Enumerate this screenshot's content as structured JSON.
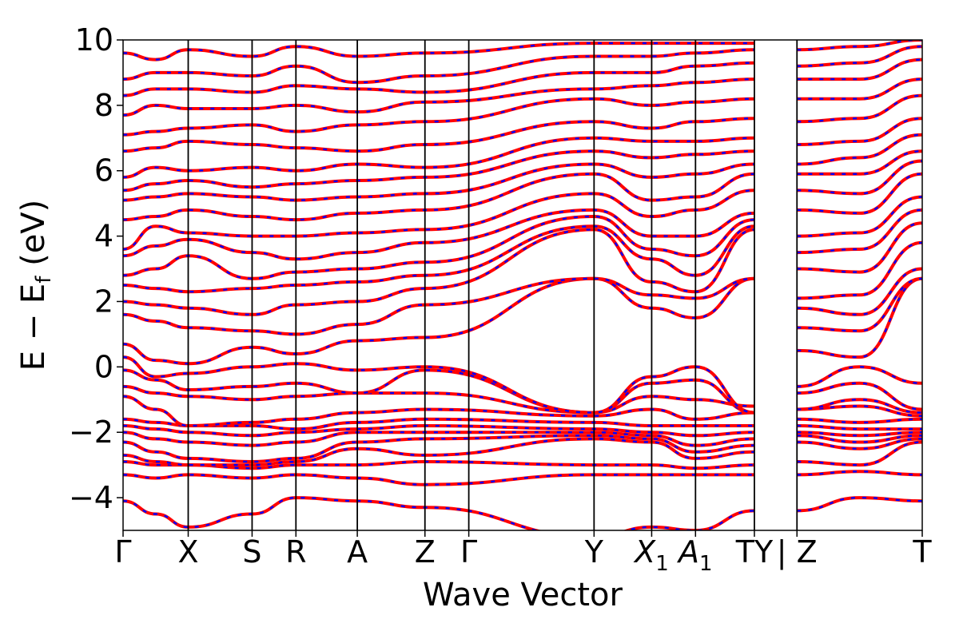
{
  "chart_data": {
    "type": "line",
    "title": "",
    "xlabel": "Wave Vector",
    "ylabel": "E − E",
    "ylabel_sub": "f",
    "ylabel_unit": " (eV)",
    "ylim": [
      -5,
      10
    ],
    "yticks": [
      -4,
      -2,
      0,
      2,
      4,
      6,
      8,
      10
    ],
    "ytick_labels": [
      "−4",
      "−2",
      "0",
      "2",
      "4",
      "6",
      "8",
      "10"
    ],
    "x_path_positions": [
      0,
      0.52,
      1.03,
      1.38,
      1.87,
      2.41,
      2.76,
      3.76,
      4.22,
      4.57,
      5.04,
      5.38,
      6.38
    ],
    "xlim": [
      0,
      6.38
    ],
    "xticks": [
      {
        "pos": 0,
        "label": "Γ"
      },
      {
        "pos": 0.52,
        "label": "X"
      },
      {
        "pos": 1.03,
        "label": "S"
      },
      {
        "pos": 1.38,
        "label": "R"
      },
      {
        "pos": 1.87,
        "label": "A"
      },
      {
        "pos": 2.41,
        "label": "Z"
      },
      {
        "pos": 2.76,
        "label": "Γ"
      },
      {
        "pos": 3.76,
        "label": "Y"
      },
      {
        "pos": 4.22,
        "label": "X",
        "sub": "1",
        "italic": true
      },
      {
        "pos": 4.57,
        "label": "A",
        "sub": "1",
        "italic": true
      },
      {
        "pos": 5.04,
        "label": "TY"
      },
      {
        "pos": 5.38,
        "label": "| Z"
      },
      {
        "pos": 6.38,
        "label": "T"
      }
    ],
    "break_between": [
      5.04,
      5.38
    ],
    "grid": false,
    "legend": "none",
    "colors": {
      "band_solid": "#ff0000",
      "band_dashed": "#0000ff",
      "vline": "#000000"
    },
    "series": [
      {
        "y": [
          -4.1,
          -4.5,
          -4.9,
          -4.5,
          -4.0,
          -4.1,
          -4.3,
          -5.2,
          -4.9,
          -5.0,
          -4.4,
          -4.4,
          -4.0,
          -4.1
        ]
      },
      {
        "y": [
          -3.3,
          -3.4,
          -3.3,
          -3.4,
          -3.3,
          -3.4,
          -3.6,
          -3.3,
          -3.3,
          -3.3,
          -3.3,
          -3.3,
          -3.2,
          -3.3
        ]
      },
      {
        "y": [
          -2.9,
          -3.0,
          -3.0,
          -3.1,
          -3.0,
          -3.0,
          -2.9,
          -3.0,
          -3.0,
          -3.1,
          -3.0,
          -2.9,
          -3.0,
          -2.3
        ]
      },
      {
        "y": [
          -2.7,
          -2.9,
          -3.0,
          -3.0,
          -2.9,
          -2.5,
          -2.7,
          -2.2,
          -2.3,
          -2.8,
          -2.6,
          -2.3,
          -2.5,
          -2.2
        ]
      },
      {
        "y": [
          -2.3,
          -2.6,
          -2.8,
          -2.9,
          -2.8,
          -2.3,
          -2.2,
          -2.1,
          -2.2,
          -2.6,
          -2.4,
          -2.1,
          -2.3,
          -2.1
        ]
      },
      {
        "y": [
          -2.0,
          -2.2,
          -2.3,
          -2.4,
          -2.3,
          -2.0,
          -2.0,
          -2.0,
          -2.1,
          -2.4,
          -2.2,
          -2.0,
          -2.1,
          -2.0
        ]
      },
      {
        "y": [
          -1.8,
          -1.9,
          -2.0,
          -2.1,
          -2.0,
          -1.9,
          -1.8,
          -1.9,
          -2.0,
          -2.1,
          -2.0,
          -1.8,
          -1.9,
          -1.9
        ]
      },
      {
        "y": [
          -1.6,
          -1.7,
          -1.8,
          -1.8,
          -1.9,
          -1.7,
          -1.6,
          -1.7,
          -1.8,
          -1.8,
          -1.8,
          -1.6,
          -1.7,
          -1.6
        ]
      },
      {
        "y": [
          -0.9,
          -1.3,
          -1.8,
          -1.7,
          -1.6,
          -1.4,
          -1.3,
          -1.5,
          -1.3,
          -1.6,
          -1.4,
          -1.3,
          -1.2,
          -1.5
        ]
      },
      {
        "y": [
          -0.6,
          -0.8,
          -0.9,
          -1.0,
          -0.9,
          -0.8,
          -0.8,
          -1.4,
          -0.9,
          -1.0,
          -1.2,
          -1.3,
          -1.0,
          -1.4
        ]
      },
      {
        "y": [
          -0.1,
          -0.4,
          -0.7,
          -0.6,
          -0.5,
          -0.8,
          -0.1,
          -1.4,
          -0.5,
          -0.4,
          -1.4,
          -0.8,
          -0.5,
          -1.3
        ]
      },
      {
        "y": [
          0.3,
          -0.3,
          -0.2,
          0.0,
          0.1,
          -0.1,
          0.0,
          -1.4,
          -0.3,
          0.0,
          -1.4,
          -0.6,
          0.0,
          -0.5
        ]
      },
      {
        "y": [
          0.7,
          0.2,
          0.1,
          0.6,
          0.4,
          0.8,
          0.9,
          2.7,
          1.8,
          1.5,
          2.7,
          0.5,
          0.3,
          2.7
        ]
      },
      {
        "y": [
          1.6,
          1.4,
          1.2,
          1.1,
          1.0,
          1.3,
          1.9,
          2.7,
          2.2,
          2.1,
          2.7,
          1.2,
          1.1,
          2.7
        ]
      },
      {
        "y": [
          2.0,
          1.9,
          1.8,
          1.6,
          1.9,
          2.0,
          2.4,
          4.2,
          2.6,
          2.3,
          4.2,
          1.8,
          1.6,
          3.0
        ]
      },
      {
        "y": [
          2.5,
          2.4,
          2.3,
          2.4,
          2.5,
          2.6,
          2.8,
          4.3,
          3.3,
          2.8,
          4.3,
          2.1,
          2.2,
          3.8
        ]
      },
      {
        "y": [
          2.8,
          3.0,
          3.4,
          2.7,
          2.9,
          3.0,
          3.2,
          4.6,
          3.6,
          3.4,
          4.5,
          3.0,
          2.9,
          4.4
        ]
      },
      {
        "y": [
          3.4,
          3.7,
          3.9,
          3.5,
          3.3,
          3.5,
          3.8,
          4.8,
          4.0,
          4.0,
          4.7,
          3.5,
          3.6,
          4.8
        ]
      },
      {
        "y": [
          3.6,
          4.3,
          4.1,
          4.0,
          4.0,
          4.1,
          4.2,
          5.3,
          4.6,
          4.8,
          5.4,
          4.0,
          4.1,
          5.2
        ]
      },
      {
        "y": [
          4.5,
          4.6,
          4.8,
          4.6,
          4.5,
          4.7,
          4.8,
          5.9,
          5.1,
          5.2,
          5.9,
          4.8,
          4.7,
          5.9
        ]
      },
      {
        "y": [
          5.1,
          5.2,
          5.3,
          5.2,
          5.1,
          5.2,
          5.3,
          6.2,
          5.8,
          5.9,
          6.2,
          5.4,
          5.3,
          6.3
        ]
      },
      {
        "y": [
          5.4,
          5.6,
          5.7,
          5.5,
          5.6,
          5.7,
          5.8,
          6.6,
          6.4,
          6.5,
          6.6,
          5.9,
          5.9,
          6.6
        ]
      },
      {
        "y": [
          5.8,
          6.1,
          6.0,
          6.1,
          6.0,
          6.2,
          6.1,
          7.0,
          6.9,
          6.9,
          7.0,
          6.2,
          6.4,
          7.1
        ]
      },
      {
        "y": [
          6.6,
          6.7,
          6.9,
          6.8,
          6.7,
          6.6,
          6.8,
          7.5,
          7.3,
          7.5,
          7.6,
          6.8,
          6.9,
          7.6
        ]
      },
      {
        "y": [
          7.1,
          7.2,
          7.3,
          7.4,
          7.2,
          7.4,
          7.5,
          8.2,
          8.0,
          8.1,
          8.2,
          7.5,
          7.6,
          8.3
        ]
      },
      {
        "y": [
          7.7,
          8.0,
          7.9,
          7.9,
          8.0,
          7.8,
          8.1,
          8.5,
          8.6,
          8.7,
          8.8,
          8.2,
          8.2,
          8.8
        ]
      },
      {
        "y": [
          8.3,
          8.5,
          8.5,
          8.4,
          8.6,
          8.5,
          8.4,
          9.0,
          9.0,
          9.2,
          9.3,
          8.8,
          8.8,
          9.4
        ]
      },
      {
        "y": [
          8.8,
          9.0,
          9.0,
          8.9,
          9.2,
          8.7,
          8.9,
          9.5,
          9.5,
          9.6,
          9.7,
          9.2,
          9.3,
          9.8
        ]
      },
      {
        "y": [
          9.6,
          9.4,
          9.7,
          9.5,
          9.8,
          9.5,
          9.6,
          9.9,
          9.9,
          9.9,
          9.9,
          9.7,
          9.8,
          10.0
        ]
      }
    ],
    "series_x": [
      0,
      0.26,
      0.52,
      1.03,
      1.38,
      1.87,
      2.41,
      3.76,
      4.22,
      4.57,
      5.04,
      5.38,
      5.88,
      6.38
    ]
  }
}
